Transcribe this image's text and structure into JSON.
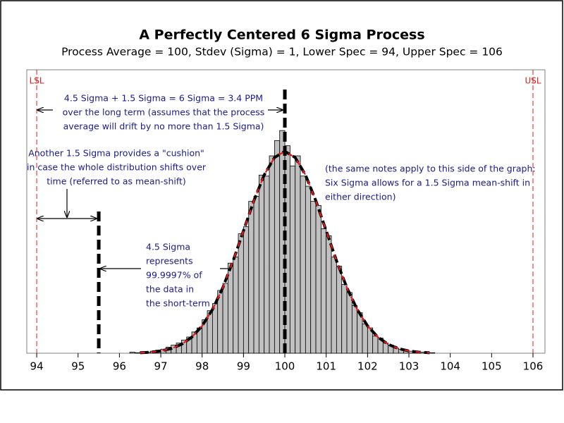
{
  "chart_data": {
    "type": "histogram",
    "title": "A Perfectly Centered 6 Sigma Process",
    "subtitle": "Process Average = 100, Stdev (Sigma) = 1, Lower Spec = 94, Upper Spec = 106",
    "bins": [
      96.25,
      96.375,
      96.5,
      96.625,
      96.75,
      96.875,
      97,
      97.125,
      97.25,
      97.375,
      97.5,
      97.625,
      97.75,
      97.875,
      98,
      98.125,
      98.25,
      98.375,
      98.5,
      98.625,
      98.75,
      98.875,
      99,
      99.125,
      99.25,
      99.375,
      99.5,
      99.625,
      99.75,
      99.875,
      100,
      100.125,
      100.25,
      100.375,
      100.5,
      100.625,
      100.75,
      100.875,
      101,
      101.125,
      101.25,
      101.375,
      101.5,
      101.625,
      101.75,
      101.875,
      102,
      102.125,
      102.25,
      102.375,
      102.5,
      102.625,
      102.75,
      102.875,
      103,
      103.125,
      103.25,
      103.375,
      103.5,
      103.625
    ],
    "values": [
      0.002,
      0.001,
      0.003,
      0.002,
      0.004,
      0.006,
      0.008,
      0.012,
      0.016,
      0.02,
      0.026,
      0.032,
      0.042,
      0.05,
      0.066,
      0.084,
      0.098,
      0.124,
      0.138,
      0.178,
      0.19,
      0.236,
      0.25,
      0.3,
      0.31,
      0.352,
      0.35,
      0.39,
      0.42,
      0.44,
      0.41,
      0.37,
      0.39,
      0.35,
      0.33,
      0.3,
      0.292,
      0.246,
      0.232,
      0.19,
      0.172,
      0.136,
      0.12,
      0.094,
      0.08,
      0.058,
      0.05,
      0.034,
      0.03,
      0.02,
      0.016,
      0.01,
      0.008,
      0.006,
      0.004,
      0.003,
      0.002,
      0.002,
      0.001
    ],
    "color": "#c0c0c0",
    "curve": {
      "x": [
        96.5,
        96.75,
        97,
        97.25,
        97.5,
        97.75,
        98,
        98.25,
        98.5,
        98.75,
        99,
        99.25,
        99.5,
        99.75,
        100,
        100.25,
        100.5,
        100.75,
        101,
        101.25,
        101.5,
        101.75,
        102,
        102.25,
        102.5,
        102.75,
        103,
        103.25,
        103.5
      ],
      "values": [
        0.0009,
        0.002,
        0.0044,
        0.0091,
        0.0175,
        0.0317,
        0.054,
        0.0863,
        0.1295,
        0.1826,
        0.242,
        0.3011,
        0.3521,
        0.3867,
        0.3989,
        0.3867,
        0.3521,
        0.3011,
        0.242,
        0.1826,
        0.1295,
        0.0863,
        0.054,
        0.0317,
        0.0175,
        0.0091,
        0.0044,
        0.002,
        0.0009
      ],
      "color": "#000000",
      "overlay_color": "#e41a1c"
    },
    "reference_lines": [
      {
        "label": "LSL",
        "value": 94,
        "color": "#e41a1c"
      },
      {
        "label": "USL",
        "value": 106,
        "color": "#e41a1c"
      },
      {
        "value": 100,
        "color": "#000000"
      },
      {
        "value": 95.5,
        "color": "#000000"
      }
    ],
    "xlim": [
      93.76,
      106.29
    ],
    "xticks": [
      94,
      95,
      96,
      97,
      98,
      99,
      100,
      101,
      102,
      103,
      104,
      105,
      106
    ],
    "ylim": [
      0,
      0.56
    ],
    "annotations": [
      {
        "lines": [
          "4.5 Sigma + 1.5 Sigma = 6 Sigma = 3.4 PPM",
          "over the long term (assumes that the process",
          "average will drift by no more than 1.5 Sigma)"
        ]
      },
      {
        "lines": [
          "Another 1.5 Sigma provides a \"cushion\"",
          "in case the whole distribution shifts over",
          "time (referred to as mean-shift)"
        ]
      },
      {
        "lines": [
          "4.5 Sigma",
          "represents",
          "99.9997% of",
          "the data in",
          "the short-term"
        ]
      },
      {
        "lines": [
          "(the same notes apply to this side of the graph:",
          "Six Sigma allows for a 1.5 Sigma mean-shift in",
          "either direction)"
        ]
      }
    ]
  }
}
